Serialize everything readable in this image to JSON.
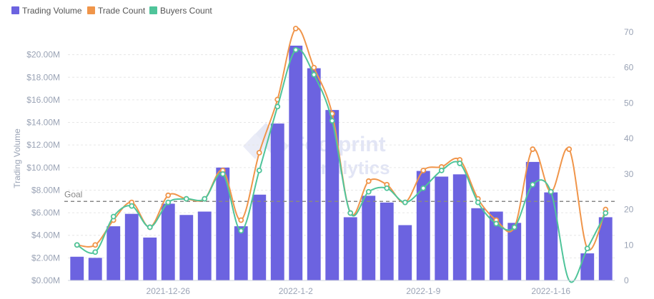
{
  "legend": {
    "volume": "Trading Volume",
    "trades": "Trade Count",
    "buyers": "Buyers Count"
  },
  "watermark": {
    "line1": "Footprint",
    "line2": "Analytics"
  },
  "colors": {
    "bar": "#6c63e0",
    "trades": "#f0954a",
    "buyers": "#4fc49a",
    "goal": "#888888",
    "grid": "#e6e6e6"
  },
  "chart_data": {
    "type": "bar",
    "y_left_label": "Trading Volume",
    "y_left_ticks": [
      "$0.00M",
      "$2.00M",
      "$4.00M",
      "$6.00M",
      "$8.00M",
      "$10.00M",
      "$12.00M",
      "$14.00M",
      "$16.00M",
      "$18.00M",
      "$20.00M"
    ],
    "y_left_lim": [
      0,
      22
    ],
    "y_right_ticks": [
      "0",
      "10",
      "20",
      "30",
      "40",
      "50",
      "60",
      "70"
    ],
    "y_right_lim": [
      0,
      70
    ],
    "x_tick_labels": [
      {
        "index": 5,
        "label": "2021-12-26"
      },
      {
        "index": 12,
        "label": "2022-1-2"
      },
      {
        "index": 19,
        "label": "2022-1-9"
      },
      {
        "index": 26,
        "label": "2022-1-16"
      }
    ],
    "goal": {
      "label": "Goal",
      "value": 7.0
    },
    "series": [
      {
        "name": "Trading Volume",
        "kind": "bar",
        "axis": "left",
        "values": [
          2.1,
          2.0,
          4.8,
          5.9,
          3.8,
          6.8,
          5.8,
          6.1,
          10.0,
          4.8,
          7.6,
          13.9,
          20.8,
          18.8,
          15.1,
          5.6,
          7.5,
          6.9,
          4.9,
          9.7,
          9.2,
          9.4,
          6.4,
          6.1,
          5.1,
          10.5,
          7.8,
          0,
          2.4,
          5.6
        ]
      },
      {
        "name": "Trade Count",
        "kind": "line",
        "axis": "right",
        "values": [
          10,
          10,
          17,
          22,
          15,
          24,
          23,
          23,
          31,
          17,
          36,
          51,
          71,
          60,
          47,
          19,
          28,
          27,
          22,
          31,
          32,
          34,
          23,
          17,
          15,
          37,
          25,
          37,
          9,
          20
        ]
      },
      {
        "name": "Buyers Count",
        "kind": "line",
        "axis": "right",
        "values": [
          10,
          8,
          18,
          21,
          15,
          22,
          23,
          23,
          30,
          14,
          31,
          49,
          65,
          58,
          45,
          19,
          25,
          26,
          22,
          26,
          31,
          33,
          22,
          16,
          15,
          27,
          25,
          0,
          9,
          19
        ]
      }
    ]
  }
}
